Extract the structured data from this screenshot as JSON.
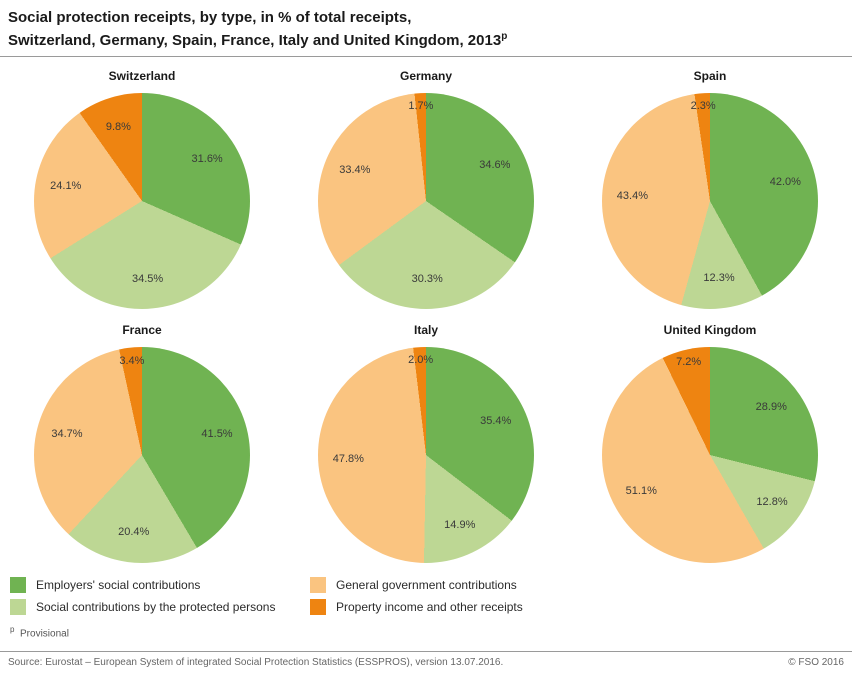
{
  "title": {
    "line1": "Social protection receipts, by type, in % of total receipts,",
    "line2": "Switzerland, Germany, Spain, France, Italy and United Kingdom, 2013",
    "superscript": "p"
  },
  "colors": {
    "employers": "#70b352",
    "protected": "#bdd794",
    "government": "#fac480",
    "property": "#ee8411"
  },
  "chart_data": {
    "type": "pie",
    "unit": "%",
    "start_angle": "top",
    "direction": "clockwise",
    "slice_order": [
      "employers",
      "protected",
      "government",
      "property"
    ],
    "slice_names": [
      "Employers' social contributions",
      "Social contributions by the protected persons",
      "General government contributions",
      "Property income and other receipts"
    ],
    "pies": [
      {
        "title": "Switzerland",
        "values": [
          31.6,
          34.5,
          24.1,
          9.8
        ]
      },
      {
        "title": "Germany",
        "values": [
          34.6,
          30.3,
          33.4,
          1.7
        ]
      },
      {
        "title": "Spain",
        "values": [
          42.0,
          12.3,
          43.4,
          2.3
        ]
      },
      {
        "title": "France",
        "values": [
          41.5,
          20.4,
          34.7,
          3.4
        ]
      },
      {
        "title": "Italy",
        "values": [
          35.4,
          14.9,
          47.8,
          2.0
        ]
      },
      {
        "title": "United Kingdom",
        "values": [
          28.9,
          12.8,
          51.1,
          7.2
        ]
      }
    ]
  },
  "legend": {
    "items": [
      {
        "label": "Employers' social contributions",
        "color_key": "employers"
      },
      {
        "label": "Social contributions by the protected persons",
        "color_key": "protected"
      },
      {
        "label": "General government contributions",
        "color_key": "government"
      },
      {
        "label": "Property income and other receipts",
        "color_key": "property"
      }
    ]
  },
  "footnote": {
    "marker": "p",
    "text": "Provisional"
  },
  "footer": {
    "source": "Source: Eurostat – European System of integrated Social Protection Statistics (ESSPROS), version 13.07.2016.",
    "copyright": "© FSO 2016"
  }
}
